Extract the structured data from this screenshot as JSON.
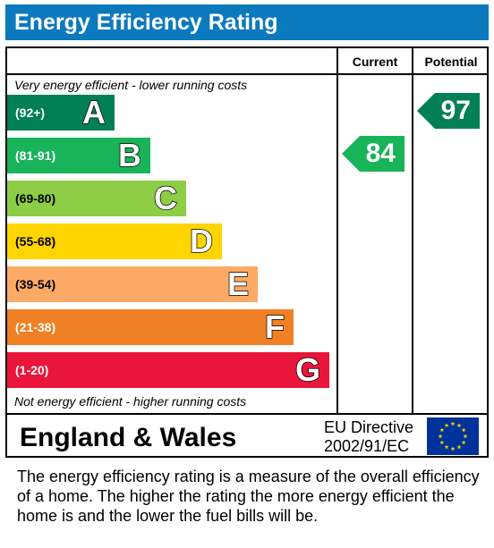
{
  "header": {
    "title": "Energy Efficiency Rating"
  },
  "columns": {
    "current": "Current",
    "potential": "Potential"
  },
  "captions": {
    "top": "Very energy efficient - lower running costs",
    "bottom": "Not energy efficient - higher running costs"
  },
  "footer": {
    "region": "England & Wales",
    "directive_line1": "EU Directive",
    "directive_line2": "2002/91/EC"
  },
  "note": "The energy efficiency rating is a measure of the overall efficiency of a home.  The higher the rating the more energy efficient the home is and the lower the fuel bills will be.",
  "chart_data": {
    "type": "bar",
    "title": "Energy Efficiency Rating",
    "categories": [
      "A",
      "B",
      "C",
      "D",
      "E",
      "F",
      "G"
    ],
    "bands": [
      {
        "letter": "A",
        "range": "(92+)",
        "min": 92,
        "max": 100,
        "color": "#008054"
      },
      {
        "letter": "B",
        "range": "(81-91)",
        "min": 81,
        "max": 91,
        "color": "#19b459"
      },
      {
        "letter": "C",
        "range": "(69-80)",
        "min": 69,
        "max": 80,
        "color": "#8dce46"
      },
      {
        "letter": "D",
        "range": "(55-68)",
        "min": 55,
        "max": 68,
        "color": "#ffd500"
      },
      {
        "letter": "E",
        "range": "(39-54)",
        "min": 39,
        "max": 54,
        "color": "#fcaa65"
      },
      {
        "letter": "F",
        "range": "(21-38)",
        "min": 21,
        "max": 38,
        "color": "#ef8023"
      },
      {
        "letter": "G",
        "range": "(1-20)",
        "min": 1,
        "max": 20,
        "color": "#e9153b"
      }
    ],
    "current": {
      "value": "84",
      "band": "B",
      "color": "#19b459"
    },
    "potential": {
      "value": "97",
      "band": "A",
      "color": "#008054"
    }
  }
}
